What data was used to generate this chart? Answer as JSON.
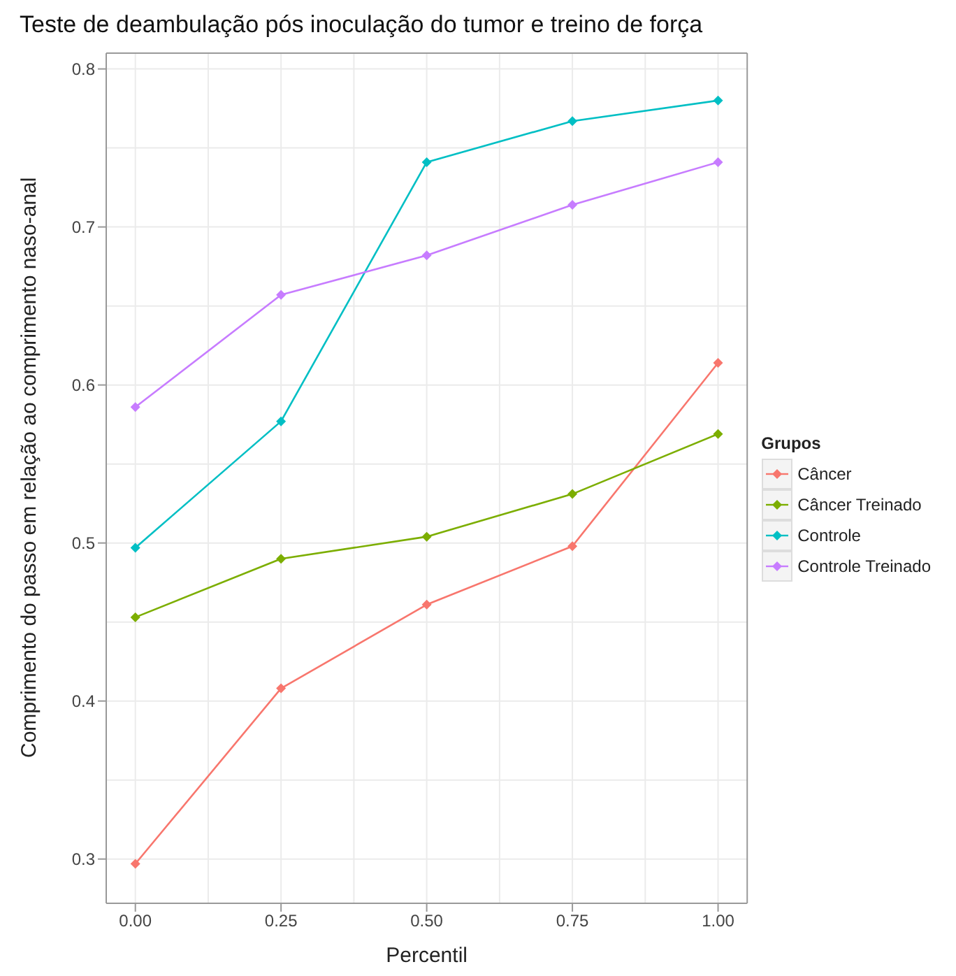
{
  "chart_data": {
    "type": "line",
    "title": "Teste de deambulação pós inoculação do tumor e treino de força",
    "xlabel": "Percentil",
    "ylabel": "Comprimento do passo em relação ao comprimento naso-anal",
    "legend_title": "Grupos",
    "x": [
      0,
      0.25,
      0.5,
      0.75,
      1
    ],
    "xlim": [
      -0.05,
      1.05
    ],
    "xticks": [
      {
        "value": 0,
        "label": "0.00"
      },
      {
        "value": 0.25,
        "label": "0.25"
      },
      {
        "value": 0.5,
        "label": "0.50"
      },
      {
        "value": 0.75,
        "label": "0.75"
      },
      {
        "value": 1,
        "label": "1.00"
      }
    ],
    "ylim": [
      0.272,
      0.81
    ],
    "yticks": [
      0.3,
      0.4,
      0.5,
      0.6,
      0.7,
      0.8
    ],
    "series": [
      {
        "name": "Câncer",
        "color": "#f8766d",
        "values": [
          0.297,
          0.408,
          0.461,
          0.498,
          0.614
        ]
      },
      {
        "name": "Câncer Treinado",
        "color": "#7cae00",
        "values": [
          0.453,
          0.49,
          0.504,
          0.531,
          0.569
        ]
      },
      {
        "name": "Controle",
        "color": "#00bfc4",
        "values": [
          0.497,
          0.577,
          0.741,
          0.767,
          0.78
        ]
      },
      {
        "name": "Controle Treinado",
        "color": "#c77cff",
        "values": [
          0.586,
          0.657,
          0.682,
          0.714,
          0.741
        ]
      }
    ],
    "grid": true,
    "legend": "right",
    "marker": "diamond",
    "line_style": "solid"
  }
}
